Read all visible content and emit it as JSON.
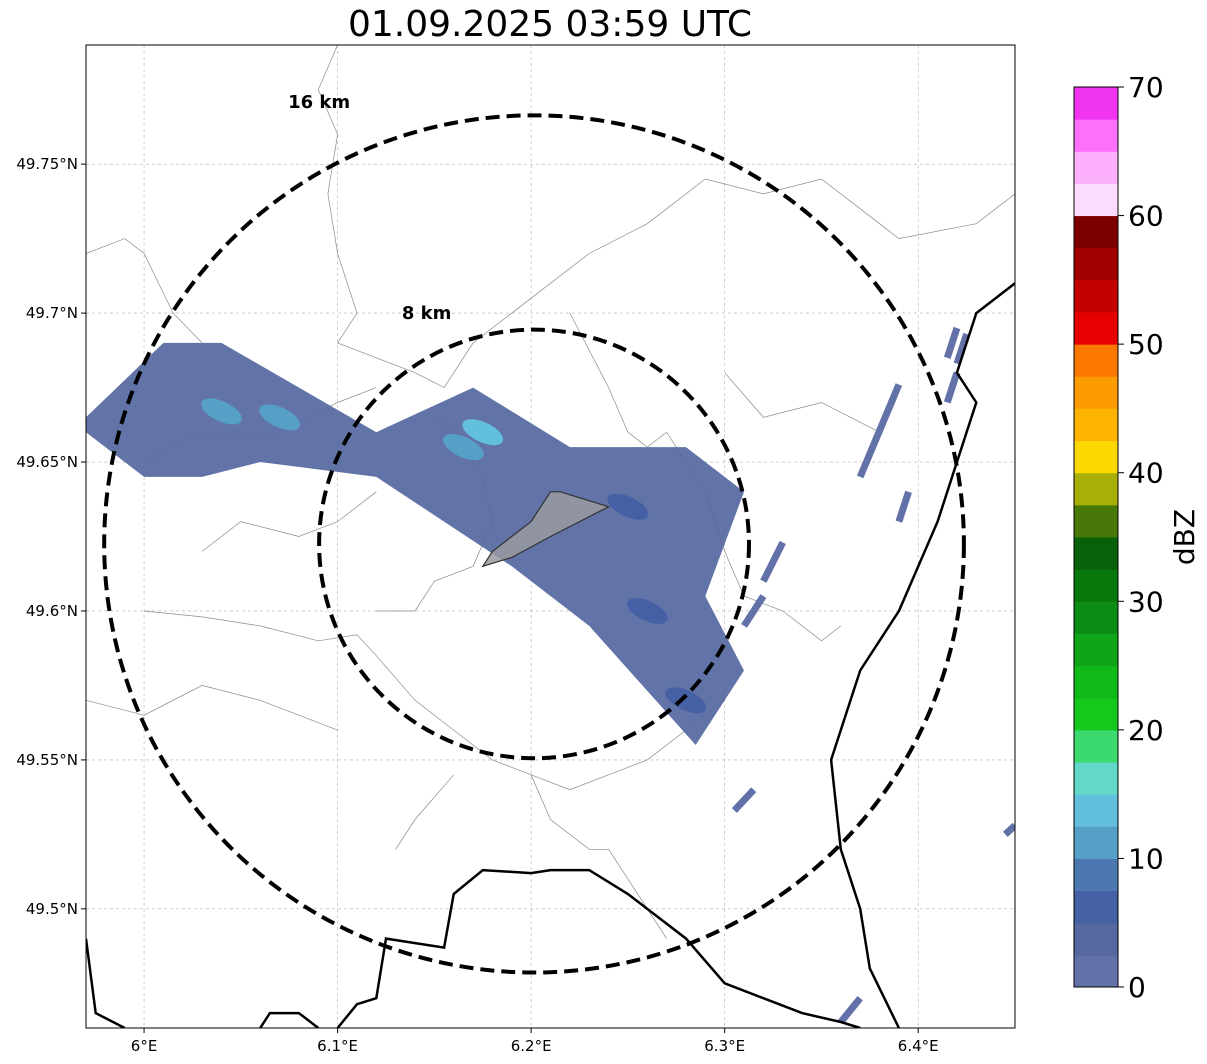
{
  "title": "01.09.2025 03:59 UTC",
  "map": {
    "lon_range": [
      5.97,
      6.45
    ],
    "lat_range": [
      49.46,
      49.79
    ],
    "lon_ticks": [
      {
        "value": 6.0,
        "label": "6°E"
      },
      {
        "value": 6.1,
        "label": "6.1°E"
      },
      {
        "value": 6.2,
        "label": "6.2°E"
      },
      {
        "value": 6.3,
        "label": "6.3°E"
      },
      {
        "value": 6.4,
        "label": "6.4°E"
      }
    ],
    "lat_ticks": [
      {
        "value": 49.75,
        "label": "49.75°N"
      },
      {
        "value": 49.7,
        "label": "49.7°N"
      },
      {
        "value": 49.65,
        "label": "49.65°N"
      },
      {
        "value": 49.6,
        "label": "49.6°N"
      },
      {
        "value": 49.55,
        "label": "49.55°N"
      },
      {
        "value": 49.5,
        "label": "49.5°N"
      }
    ],
    "grid": true,
    "radar_center": {
      "lon": 6.2015,
      "lat": 49.6225
    },
    "range_rings": [
      {
        "radius_km": 8,
        "label": "8 km"
      },
      {
        "radius_km": 16,
        "label": "16 km"
      }
    ]
  },
  "colorbar": {
    "label": "dBZ",
    "min": 0,
    "max": 70,
    "step": 2.5,
    "ticks": [
      0,
      10,
      20,
      30,
      40,
      50,
      60,
      70
    ],
    "colors": [
      "#6272a8",
      "#5568a0",
      "#4560a4",
      "#4b78b0",
      "#56a0c8",
      "#63c0dc",
      "#63d8c8",
      "#3cd870",
      "#14c81c",
      "#10b818",
      "#10a418",
      "#0c8c14",
      "#08780c",
      "#086008",
      "#487808",
      "#a8b008",
      "#fcd800",
      "#fcb400",
      "#fc9c00",
      "#fc7800",
      "#e80000",
      "#c40000",
      "#a00000",
      "#7c0000",
      "#fcdcfc",
      "#fcb0fc",
      "#fc70fc",
      "#f034f0"
    ]
  },
  "echo_band": {
    "name": "echo-band",
    "polygon": [
      [
        5.97,
        49.665
      ],
      [
        6.01,
        49.69
      ],
      [
        6.04,
        49.69
      ],
      [
        6.12,
        49.66
      ],
      [
        6.17,
        49.675
      ],
      [
        6.22,
        49.655
      ],
      [
        6.28,
        49.655
      ],
      [
        6.31,
        49.64
      ],
      [
        6.29,
        49.605
      ],
      [
        6.31,
        49.58
      ],
      [
        6.285,
        49.555
      ],
      [
        6.23,
        49.595
      ],
      [
        6.19,
        49.615
      ],
      [
        6.12,
        49.645
      ],
      [
        6.06,
        49.65
      ],
      [
        6.03,
        49.645
      ],
      [
        6.0,
        49.645
      ],
      [
        5.97,
        49.66
      ]
    ]
  },
  "echo_cells": [
    {
      "lon": 6.04,
      "lat": 49.667,
      "dbz": 12
    },
    {
      "lon": 6.07,
      "lat": 49.665,
      "dbz": 12
    },
    {
      "lon": 6.175,
      "lat": 49.66,
      "dbz": 13
    },
    {
      "lon": 6.165,
      "lat": 49.655,
      "dbz": 12
    },
    {
      "lon": 6.25,
      "lat": 49.635,
      "dbz": 7
    },
    {
      "lon": 6.26,
      "lat": 49.6,
      "dbz": 6
    },
    {
      "lon": 6.28,
      "lat": 49.57,
      "dbz": 6
    }
  ],
  "echo_streaks": [
    [
      6.39,
      49.676,
      6.37,
      49.645
    ],
    [
      6.42,
      49.695,
      6.415,
      49.685
    ],
    [
      6.425,
      49.693,
      6.42,
      49.683
    ],
    [
      6.42,
      49.68,
      6.415,
      49.67
    ],
    [
      6.395,
      49.64,
      6.39,
      49.63
    ],
    [
      6.33,
      49.623,
      6.32,
      49.61
    ],
    [
      6.32,
      49.605,
      6.31,
      49.595
    ],
    [
      6.315,
      49.54,
      6.305,
      49.533
    ],
    [
      6.37,
      49.47,
      6.36,
      49.462
    ],
    [
      6.45,
      49.528,
      6.445,
      49.525
    ]
  ],
  "highlight_area": {
    "name": "highlight-area",
    "polygon": [
      [
        6.215,
        49.64
      ],
      [
        6.24,
        49.635
      ],
      [
        6.21,
        49.625
      ],
      [
        6.19,
        49.618
      ],
      [
        6.175,
        49.615
      ],
      [
        6.18,
        49.62
      ],
      [
        6.2,
        49.63
      ],
      [
        6.21,
        49.64
      ]
    ]
  }
}
